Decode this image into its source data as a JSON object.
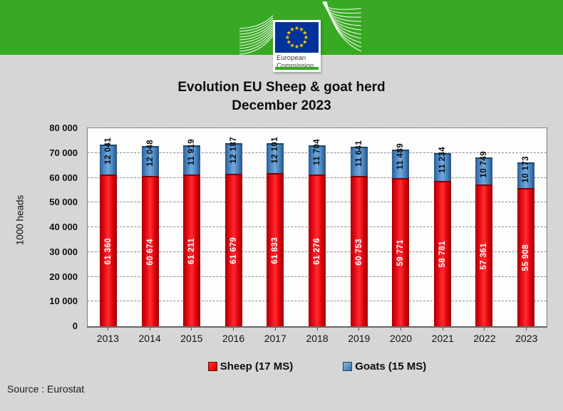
{
  "banner": {
    "logo": {
      "line1": "European",
      "line2": "Commission",
      "flag_blue": "#003399",
      "star_yellow": "#ffcc00",
      "green": "#38a922"
    }
  },
  "title": {
    "line1": "Evolution EU Sheep & goat herd",
    "line2": "December 2023"
  },
  "chart_data": {
    "type": "bar",
    "stacked": true,
    "title": "Evolution EU Sheep & goat herd December 2023",
    "categories": [
      "2013",
      "2014",
      "2015",
      "2016",
      "2017",
      "2018",
      "2019",
      "2020",
      "2021",
      "2022",
      "2023"
    ],
    "series": [
      {
        "name": "Sheep (17 MS)",
        "color": "#e8001c",
        "values": [
          61360,
          60674,
          61211,
          61679,
          61833,
          61276,
          60753,
          59771,
          58781,
          57361,
          55908
        ],
        "labels": [
          "61 360",
          "60 674",
          "61 211",
          "61 679",
          "61 833",
          "61 276",
          "60 753",
          "59 771",
          "58 781",
          "57 361",
          "55 908"
        ]
      },
      {
        "name": "Goats (15 MS)",
        "color": "#4a86c8",
        "values": [
          12041,
          12048,
          11919,
          12187,
          12101,
          11704,
          11641,
          11489,
          11234,
          10749,
          10173
        ],
        "labels": [
          "12 041",
          "12 048",
          "11 919",
          "12 187",
          "12 101",
          "11 704",
          "11 641",
          "11 489",
          "11 234",
          "10 749",
          "10 173"
        ]
      }
    ],
    "xlabel": "",
    "ylabel": "1000 heads",
    "ylim": [
      0,
      80000
    ],
    "ytick_step": 10000,
    "yticks": [
      "0",
      "10 000",
      "20 000",
      "30 000",
      "40 000",
      "50 000",
      "60 000",
      "70 000",
      "80 000"
    ],
    "grid": "horizontal-dashed",
    "legend_position": "bottom"
  },
  "source": "Source : Eurostat"
}
